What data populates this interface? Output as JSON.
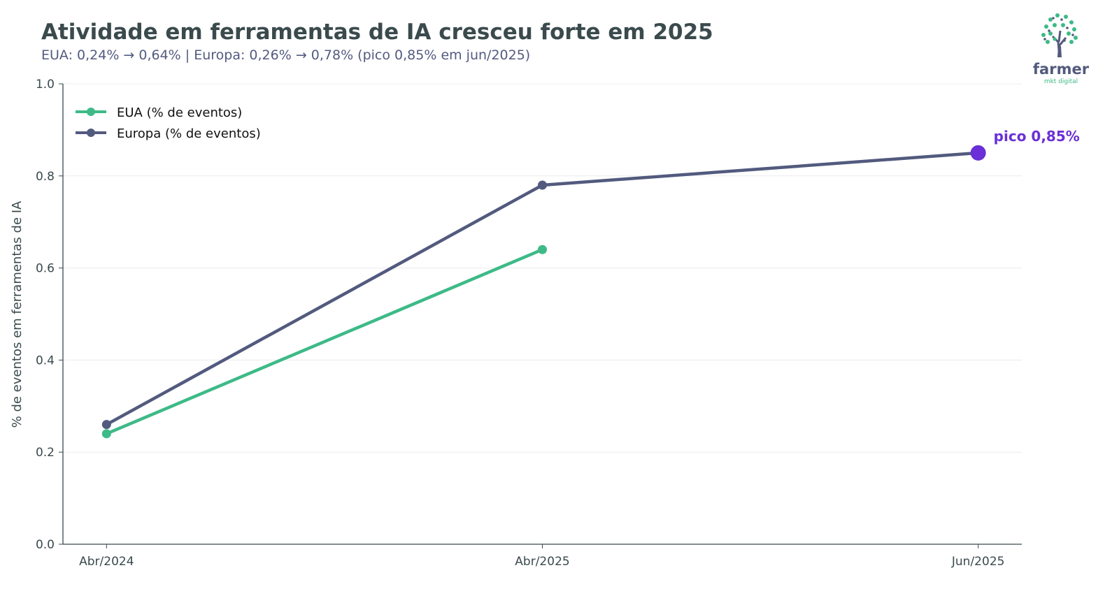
{
  "header": {
    "title": "Atividade em ferramentas de IA cresceu forte em 2025",
    "subtitle": "EUA: 0,24% → 0,64% | Europa: 0,26% → 0,78% (pico 0,85% em jun/2025)"
  },
  "logo": {
    "name": "farmer",
    "tagline": "mkt digital",
    "icon": "tree-icon"
  },
  "chart_data": {
    "type": "line",
    "title": "Atividade em ferramentas de IA cresceu forte em 2025",
    "ylabel": "% de eventos em ferramentas de IA",
    "xlabel": "",
    "categories": [
      "Abr/2024",
      "Abr/2025",
      "Jun/2025"
    ],
    "ylim": [
      0,
      1.0
    ],
    "yticks": [
      "0.0",
      "0.2",
      "0.4",
      "0.6",
      "0.8",
      "1.0"
    ],
    "grid": "horizontal",
    "legend_position": "top-left",
    "series": [
      {
        "name": "EUA (% de eventos)",
        "color": "#3dba87",
        "values": [
          0.24,
          0.64,
          null
        ]
      },
      {
        "name": "Europa (% de eventos)",
        "color": "#525a7e",
        "values": [
          0.26,
          0.78,
          0.85
        ]
      }
    ],
    "annotations": [
      {
        "text": "pico 0,85%",
        "category": "Jun/2025",
        "value": 0.85,
        "color": "#6a2fd6"
      }
    ]
  }
}
